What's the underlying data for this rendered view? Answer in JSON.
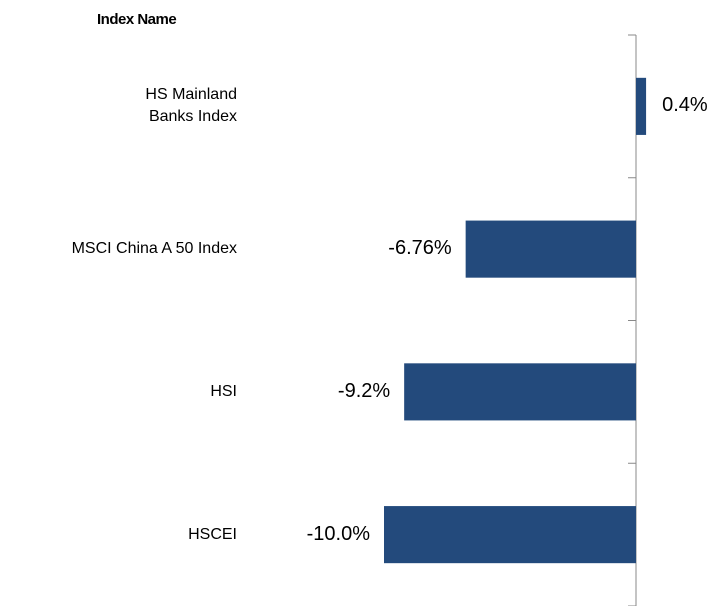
{
  "chart_data": {
    "type": "barh",
    "header": "Index Name",
    "categories": [
      "HS Mainland\nBanks Index",
      "MSCI China A 50 Index",
      "HSI",
      "HSCEI"
    ],
    "values": [
      0.4,
      -6.76,
      -9.2,
      -10.0
    ],
    "value_labels": [
      "0.4%",
      "-6.76%",
      "-9.2%",
      "-10.0%"
    ],
    "color": "#234a7c",
    "xlim": [
      -10.5,
      0.5
    ]
  }
}
